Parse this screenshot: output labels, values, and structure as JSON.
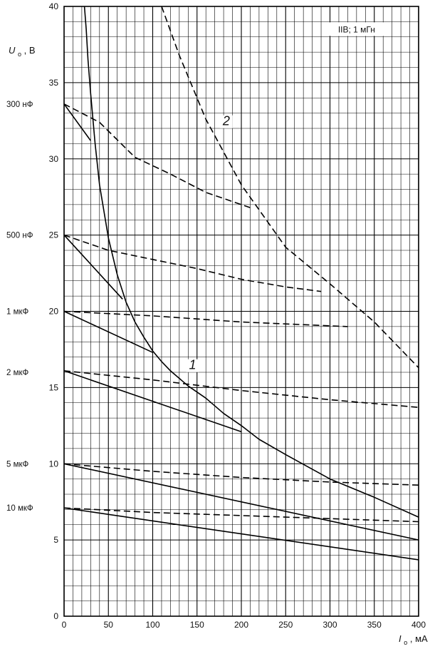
{
  "chart_data": {
    "type": "line",
    "annotation": "IIB; 1 мГн",
    "ylabel_main": "U",
    "ylabel_sub": "o",
    "ylabel_unit": ", В",
    "xlabel_main": "I",
    "xlabel_sub": "o",
    "xlabel_unit": ", мА",
    "xlim": [
      0,
      400
    ],
    "ylim": [
      0,
      40
    ],
    "x_ticks": [
      0,
      50,
      100,
      150,
      200,
      250,
      300,
      350,
      400
    ],
    "y_ticks": [
      0,
      5,
      10,
      15,
      20,
      25,
      30,
      35,
      40
    ],
    "grid": true,
    "curve_labels": [
      {
        "text": "1",
        "x": 145,
        "y": 16.2
      },
      {
        "text": "2",
        "x": 183,
        "y": 32.2
      }
    ],
    "capacitance_labels": [
      {
        "text": "300 нФ",
        "y": 33.6
      },
      {
        "text": "500 нФ",
        "y": 25
      },
      {
        "text": "1 мкФ",
        "y": 20
      },
      {
        "text": "2 мкФ",
        "y": 16
      },
      {
        "text": "5 мкФ",
        "y": 10
      },
      {
        "text": "10 мкФ",
        "y": 7.1
      }
    ],
    "series": [
      {
        "style": "solid",
        "x": [
          23,
          25,
          27,
          30,
          35,
          40,
          50,
          60,
          70,
          80,
          90,
          100,
          110,
          120,
          130,
          140,
          160,
          180,
          200,
          220,
          250,
          300,
          350,
          400
        ],
        "y": [
          40,
          38.5,
          36.5,
          34.3,
          31.0,
          28.3,
          24.8,
          22.4,
          20.6,
          19.3,
          18.3,
          17.4,
          16.7,
          16.1,
          15.6,
          15.1,
          14.3,
          13.3,
          12.5,
          11.6,
          10.6,
          9.0,
          7.8,
          6.5
        ]
      },
      {
        "style": "dashed",
        "x": [
          110,
          130,
          160,
          200,
          250,
          300,
          350,
          400
        ],
        "y": [
          40,
          36.8,
          32.6,
          28.3,
          24.2,
          21.8,
          19.3,
          16.3
        ]
      },
      {
        "style": "solid",
        "x": [
          0,
          30
        ],
        "y": [
          33.6,
          31.2
        ]
      },
      {
        "style": "dashed",
        "x": [
          0,
          40,
          80,
          120,
          160,
          210
        ],
        "y": [
          33.6,
          32.4,
          30.1,
          29.0,
          27.8,
          26.8
        ]
      },
      {
        "style": "solid",
        "x": [
          0,
          66
        ],
        "y": [
          25,
          20.8
        ]
      },
      {
        "style": "dashed",
        "x": [
          0,
          50,
          100,
          150,
          200,
          250,
          290
        ],
        "y": [
          25,
          24.0,
          23.4,
          22.8,
          22.1,
          21.6,
          21.3
        ]
      },
      {
        "style": "solid",
        "x": [
          0,
          100
        ],
        "y": [
          20,
          17.3
        ]
      },
      {
        "style": "dashed",
        "x": [
          0,
          100,
          200,
          320
        ],
        "y": [
          20,
          19.7,
          19.3,
          19.0
        ]
      },
      {
        "style": "solid",
        "x": [
          0,
          200
        ],
        "y": [
          16.1,
          12.1
        ]
      },
      {
        "style": "dashed",
        "x": [
          0,
          100,
          200,
          300,
          400
        ],
        "y": [
          16.1,
          15.5,
          14.8,
          14.2,
          13.7
        ]
      },
      {
        "style": "solid",
        "x": [
          0,
          400
        ],
        "y": [
          10,
          5.0
        ]
      },
      {
        "style": "dashed",
        "x": [
          0,
          100,
          200,
          300,
          400
        ],
        "y": [
          10,
          9.5,
          9.1,
          8.8,
          8.6
        ]
      },
      {
        "style": "solid",
        "x": [
          0,
          400
        ],
        "y": [
          7.1,
          3.7
        ]
      },
      {
        "style": "dashed",
        "x": [
          0,
          100,
          200,
          300,
          400
        ],
        "y": [
          7.1,
          6.8,
          6.6,
          6.4,
          6.2
        ]
      }
    ]
  }
}
